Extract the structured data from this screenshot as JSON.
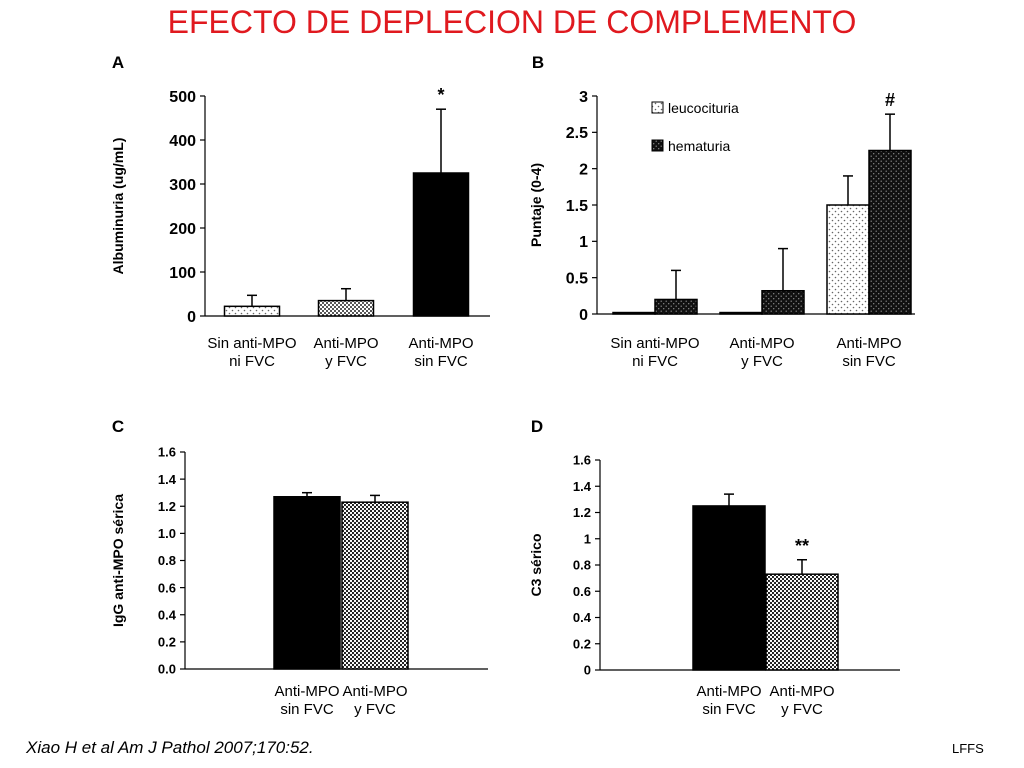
{
  "title": "EFECTO DE DEPLECION DE COMPLEMENTO",
  "citation": "Xiao H et al Am J Pathol 2007;170:52.",
  "credit": "LFFS",
  "chart_data": [
    {
      "panel": "A",
      "type": "bar",
      "ylabel": "Albuminuria (ug/mL)",
      "ylim": [
        0,
        500
      ],
      "yticks": [
        "0",
        "100",
        "200",
        "300",
        "400",
        "500"
      ],
      "categories": [
        [
          "Sin anti-MPO",
          "ni FVC"
        ],
        [
          "Anti-MPO",
          "y FVC"
        ],
        [
          "Anti-MPO",
          "sin FVC"
        ]
      ],
      "series": [
        {
          "values": [
            22,
            35,
            325
          ],
          "errors": [
            25,
            27,
            145
          ],
          "patterns": [
            "dots-light",
            "dots-dark",
            "solid"
          ]
        }
      ],
      "annotations": [
        {
          "category": 2,
          "text": "*"
        }
      ]
    },
    {
      "panel": "B",
      "type": "bar",
      "ylabel": "Puntaje (0-4)",
      "ylim": [
        0,
        3
      ],
      "yticks": [
        "0",
        "0.5",
        "1",
        "1.5",
        "2",
        "2.5",
        "3"
      ],
      "categories": [
        [
          "Sin anti-MPO",
          "ni FVC"
        ],
        [
          "Anti-MPO",
          "y FVC"
        ],
        [
          "Anti-MPO",
          "sin FVC"
        ]
      ],
      "series": [
        {
          "name": "leucocituria",
          "values": [
            0.02,
            0.02,
            1.5
          ],
          "errors": [
            0,
            0,
            0.4
          ],
          "pattern": "dots-light"
        },
        {
          "name": "hematuria",
          "values": [
            0.2,
            0.32,
            2.25
          ],
          "errors": [
            0.4,
            0.58,
            0.5
          ],
          "pattern": "dots-black"
        }
      ],
      "legend": "top-left",
      "annotations": [
        {
          "category": 2,
          "series": 1,
          "text": "#"
        }
      ]
    },
    {
      "panel": "C",
      "type": "bar",
      "ylabel": "IgG anti-MPO sérica",
      "ylim": [
        0,
        1.6
      ],
      "yticks": [
        "0.0",
        "0.2",
        "0.4",
        "0.6",
        "0.8",
        "1.0",
        "1.2",
        "1.4",
        "1.6"
      ],
      "categories": [
        [
          "Anti-MPO",
          "sin FVC"
        ],
        [
          "Anti-MPO",
          "y FVC"
        ]
      ],
      "series": [
        {
          "values": [
            1.27,
            1.23
          ],
          "errors": [
            0.03,
            0.05
          ],
          "patterns": [
            "solid",
            "dots-white"
          ]
        }
      ]
    },
    {
      "panel": "D",
      "type": "bar",
      "ylabel": "C3 sérico",
      "ylim": [
        0,
        1.6
      ],
      "yticks": [
        "0",
        "0.2",
        "0.4",
        "0.6",
        "0.8",
        "1",
        "1.2",
        "1.4",
        "1.6"
      ],
      "categories": [
        [
          "Anti-MPO",
          "sin FVC"
        ],
        [
          "Anti-MPO",
          "y FVC"
        ]
      ],
      "series": [
        {
          "values": [
            1.25,
            0.73
          ],
          "errors": [
            0.09,
            0.11
          ],
          "patterns": [
            "solid",
            "dots-white"
          ]
        }
      ],
      "annotations": [
        {
          "category": 1,
          "text": "**"
        }
      ]
    }
  ]
}
